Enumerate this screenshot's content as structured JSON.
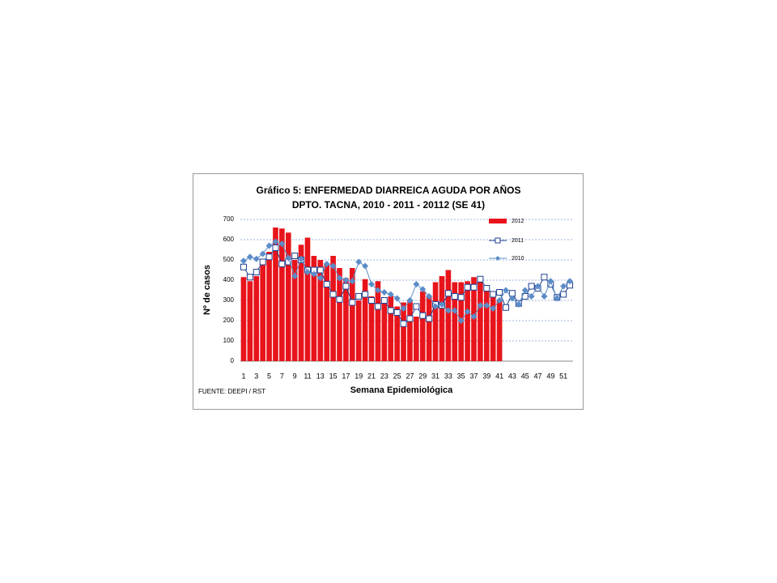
{
  "chart_data": {
    "type": "bar-line",
    "title": "Gráfico 5: ENFERMEDAD DIARREICA AGUDA POR  AÑOS",
    "subtitle": "DPTO. TACNA, 2010 - 2011 - 20112 (SE  41)",
    "x_label": "Semana Epidemiológica",
    "y_label": "Nº de casos",
    "annotation": "FUENTE: DEEPI  / RST",
    "categories": [
      1,
      null,
      3,
      null,
      5,
      null,
      7,
      null,
      9,
      null,
      11,
      null,
      13,
      null,
      15,
      null,
      17,
      null,
      19,
      null,
      21,
      null,
      23,
      null,
      25,
      null,
      27,
      null,
      29,
      null,
      31,
      null,
      33,
      null,
      35,
      null,
      37,
      null,
      39,
      null,
      41,
      null,
      43,
      null,
      45,
      null,
      47,
      null,
      49,
      null,
      51,
      null
    ],
    "series": [
      {
        "name": "2012",
        "kind": "bar",
        "color": "#e8141b",
        "values": [
          415,
          395,
          420,
          480,
          540,
          660,
          655,
          635,
          500,
          575,
          610,
          520,
          500,
          480,
          520,
          460,
          410,
          460,
          300,
          405,
          320,
          395,
          310,
          320,
          270,
          290,
          295,
          220,
          345,
          325,
          390,
          420,
          450,
          390,
          390,
          395,
          415,
          390,
          350,
          320,
          300,
          null,
          null,
          null,
          null,
          null,
          null,
          null,
          null,
          null,
          null,
          null
        ]
      },
      {
        "name": "2011",
        "kind": "line",
        "marker": "square",
        "color": "#1f3f8f",
        "values": [
          465,
          415,
          440,
          490,
          515,
          560,
          480,
          490,
          520,
          500,
          450,
          450,
          450,
          380,
          330,
          305,
          370,
          290,
          320,
          330,
          300,
          270,
          300,
          250,
          240,
          185,
          210,
          270,
          225,
          210,
          280,
          275,
          335,
          320,
          315,
          365,
          365,
          405,
          360,
          330,
          340,
          265,
          335,
          285,
          320,
          370,
          360,
          415,
          380,
          315,
          330,
          375
        ]
      },
      {
        "name": "2010",
        "kind": "line",
        "marker": "diamond",
        "color": "#5b8cc8",
        "values": [
          495,
          515,
          505,
          530,
          570,
          590,
          580,
          510,
          420,
          505,
          440,
          430,
          410,
          480,
          470,
          410,
          400,
          395,
          490,
          470,
          380,
          350,
          340,
          330,
          310,
          260,
          300,
          380,
          355,
          320,
          270,
          280,
          250,
          250,
          200,
          245,
          220,
          275,
          275,
          260,
          300,
          350,
          310,
          280,
          350,
          320,
          370,
          320,
          395,
          310,
          370,
          395
        ]
      }
    ],
    "ylim": [
      0,
      700
    ],
    "yticks": [
      0,
      100,
      200,
      300,
      400,
      500,
      600,
      700
    ],
    "grid": true,
    "legend": "top-right"
  }
}
